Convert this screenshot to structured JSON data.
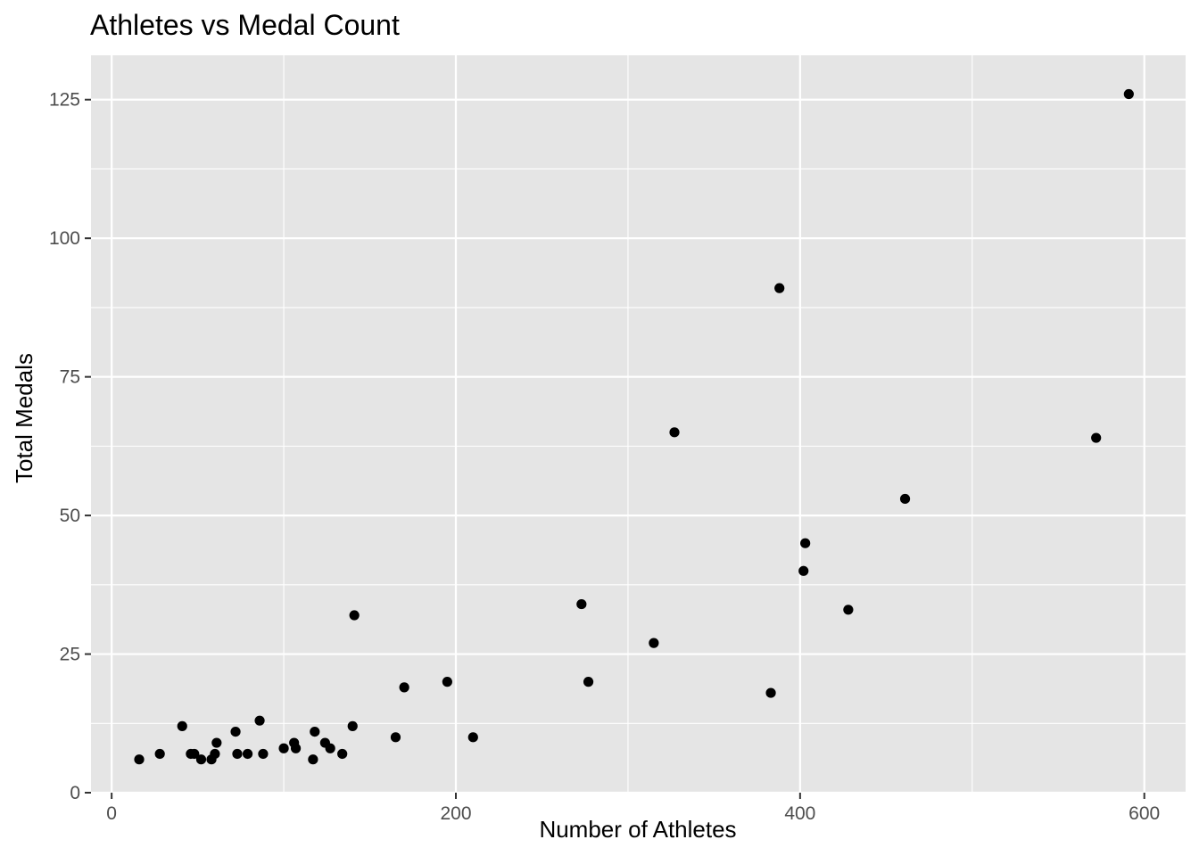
{
  "chart_data": {
    "type": "scatter",
    "title": "Athletes vs Medal Count",
    "xlabel": "Number of Athletes",
    "ylabel": "Total Medals",
    "xlim": [
      -12,
      624
    ],
    "ylim": [
      0,
      133
    ],
    "x_ticks": [
      0,
      200,
      400,
      600
    ],
    "x_tick_labels": [
      "0",
      "200",
      "400",
      "600"
    ],
    "y_ticks": [
      0,
      25,
      50,
      75,
      100,
      125
    ],
    "y_tick_labels": [
      "0",
      "25",
      "50",
      "75",
      "100",
      "125"
    ],
    "grid": true,
    "panel_background": "#e5e5e5",
    "grid_color": "#ffffff",
    "point_color": "#000000",
    "points": [
      {
        "x": 16,
        "y": 6
      },
      {
        "x": 28,
        "y": 7
      },
      {
        "x": 41,
        "y": 12
      },
      {
        "x": 46,
        "y": 7
      },
      {
        "x": 48,
        "y": 7
      },
      {
        "x": 52,
        "y": 6
      },
      {
        "x": 58,
        "y": 6
      },
      {
        "x": 60,
        "y": 7
      },
      {
        "x": 61,
        "y": 9
      },
      {
        "x": 72,
        "y": 11
      },
      {
        "x": 73,
        "y": 7
      },
      {
        "x": 79,
        "y": 7
      },
      {
        "x": 86,
        "y": 13
      },
      {
        "x": 88,
        "y": 7
      },
      {
        "x": 100,
        "y": 8
      },
      {
        "x": 106,
        "y": 9
      },
      {
        "x": 107,
        "y": 8
      },
      {
        "x": 117,
        "y": 6
      },
      {
        "x": 118,
        "y": 11
      },
      {
        "x": 124,
        "y": 9
      },
      {
        "x": 127,
        "y": 8
      },
      {
        "x": 134,
        "y": 7
      },
      {
        "x": 140,
        "y": 12
      },
      {
        "x": 141,
        "y": 32
      },
      {
        "x": 165,
        "y": 10
      },
      {
        "x": 170,
        "y": 19
      },
      {
        "x": 195,
        "y": 20
      },
      {
        "x": 210,
        "y": 10
      },
      {
        "x": 273,
        "y": 34
      },
      {
        "x": 277,
        "y": 20
      },
      {
        "x": 315,
        "y": 27
      },
      {
        "x": 327,
        "y": 65
      },
      {
        "x": 383,
        "y": 18
      },
      {
        "x": 388,
        "y": 91
      },
      {
        "x": 402,
        "y": 40
      },
      {
        "x": 403,
        "y": 45
      },
      {
        "x": 428,
        "y": 33
      },
      {
        "x": 461,
        "y": 53
      },
      {
        "x": 572,
        "y": 64
      },
      {
        "x": 591,
        "y": 126
      }
    ]
  }
}
